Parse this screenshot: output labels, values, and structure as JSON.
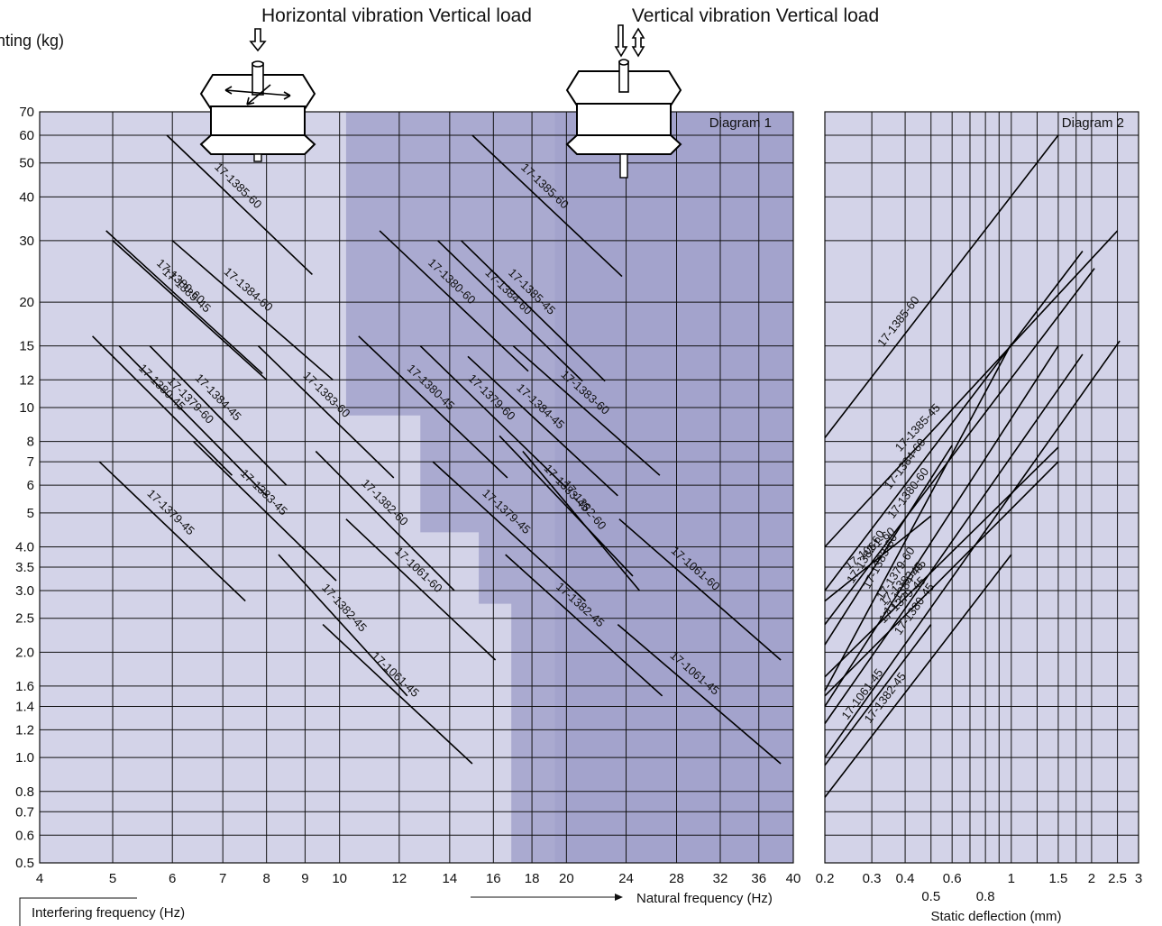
{
  "header": {
    "left_title": "Horizontal vibration Vertical load",
    "right_title": "Vertical vibration Vertical load",
    "y_label": "nting (kg)"
  },
  "chart_data": [
    {
      "type": "line",
      "title": "Diagram 1",
      "x_scale": "log",
      "y_scale": "log",
      "xlim": [
        4,
        40
      ],
      "ylim": [
        0.5,
        70
      ],
      "x_ticks": [
        4,
        5,
        6,
        7,
        8,
        9,
        10,
        12,
        14,
        16,
        18,
        20,
        24,
        28,
        32,
        36,
        40
      ],
      "y_ticks": [
        0.5,
        0.6,
        0.7,
        0.8,
        1.0,
        1.2,
        1.4,
        1.6,
        2.0,
        2.5,
        3.0,
        3.5,
        4.0,
        5,
        6,
        7,
        8,
        10,
        12,
        15,
        20,
        30,
        40,
        50,
        60,
        70
      ],
      "x_tick_labels": [
        "4",
        "5",
        "6",
        "7",
        "8",
        "9",
        "10",
        "12",
        "14",
        "16",
        "18",
        "20",
        "24",
        "28",
        "32",
        "36",
        "40"
      ],
      "y_tick_labels": [
        "0.5",
        "0.6",
        "0.7",
        "0.8",
        "1.0",
        "1.2",
        "1.4",
        "1.6",
        "2.0",
        "2.5",
        "3.0",
        "3.5",
        "4.0",
        "5",
        "6",
        "7",
        "8",
        "10",
        "12",
        "15",
        "20",
        "30",
        "40",
        "50",
        "60",
        "70"
      ],
      "xlabel_left": "Interfering frequency (Hz)",
      "xlabel_right": "Natural frequency (Hz)",
      "grid": true,
      "region_light_color": "#d3d3e8",
      "region_mid_color": "#aaaad0",
      "region_dark_color": "#a3a3cc",
      "series": [
        {
          "name": "17-1385-60",
          "x": [
            5.9,
            9.2
          ],
          "y": [
            60,
            24
          ]
        },
        {
          "name": "17-1385-45",
          "x": [
            5.0,
            8.0
          ],
          "y": [
            30,
            12
          ]
        },
        {
          "name": "17-1384-60",
          "x": [
            6.0,
            9.8
          ],
          "y": [
            30,
            12
          ]
        },
        {
          "name": "17-1380-60",
          "x": [
            4.9,
            7.9
          ],
          "y": [
            32,
            12.5
          ]
        },
        {
          "name": "17-1383-60",
          "x": [
            7.8,
            11.8
          ],
          "y": [
            15,
            6.3
          ]
        },
        {
          "name": "17-1384-45",
          "x": [
            5.6,
            8.5
          ],
          "y": [
            15,
            6
          ]
        },
        {
          "name": "17-1379-60",
          "x": [
            5.1,
            8.0
          ],
          "y": [
            15,
            5.6
          ]
        },
        {
          "name": "17-1380-45",
          "x": [
            4.7,
            7.2
          ],
          "y": [
            16,
            6.4
          ]
        },
        {
          "name": "17-1379-45",
          "x": [
            4.8,
            7.5
          ],
          "y": [
            7,
            2.8
          ]
        },
        {
          "name": "17-1383-45",
          "x": [
            6.4,
            9.9
          ],
          "y": [
            8,
            3.2
          ]
        },
        {
          "name": "17-1382-60",
          "x": [
            9.3,
            14.2
          ],
          "y": [
            7.5,
            3.0
          ]
        },
        {
          "name": "17-1061-60",
          "x": [
            10.2,
            16.1
          ],
          "y": [
            4.8,
            1.9
          ]
        },
        {
          "name": "17-1382-45",
          "x": [
            8.3,
            12.3
          ],
          "y": [
            3.8,
            1.5
          ]
        },
        {
          "name": "17-1061-45",
          "x": [
            9.5,
            15.0
          ],
          "y": [
            2.4,
            0.96
          ]
        },
        {
          "name": "17-1385-60",
          "x": [
            15.0,
            23.7
          ],
          "y": [
            60,
            23.7
          ]
        },
        {
          "name": "17-1384-60",
          "x": [
            13.5,
            21.0
          ],
          "y": [
            30,
            11.9
          ]
        },
        {
          "name": "17-1385-45",
          "x": [
            14.5,
            22.5
          ],
          "y": [
            30,
            11.9
          ]
        },
        {
          "name": "17-1380-60",
          "x": [
            11.3,
            17.8
          ],
          "y": [
            32,
            12.7
          ]
        },
        {
          "name": "17-1383-60",
          "x": [
            17.0,
            26.6
          ],
          "y": [
            15,
            6.4
          ]
        },
        {
          "name": "17-1384-45",
          "x": [
            14.8,
            23.4
          ],
          "y": [
            14,
            5.6
          ]
        },
        {
          "name": "17-1379-60",
          "x": [
            12.8,
            20.0
          ],
          "y": [
            15,
            5.9
          ]
        },
        {
          "name": "17-1380-45",
          "x": [
            10.6,
            16.7
          ],
          "y": [
            16,
            6.3
          ]
        },
        {
          "name": "17-1382-60",
          "x": [
            17.5,
            25.0
          ],
          "y": [
            7.5,
            3.0
          ]
        },
        {
          "name": "17-1383-45",
          "x": [
            16.3,
            24.5
          ],
          "y": [
            8.3,
            3.3
          ]
        },
        {
          "name": "17-1379-45",
          "x": [
            13.3,
            21.2
          ],
          "y": [
            7,
            2.8
          ]
        },
        {
          "name": "17-1061-60",
          "x": [
            23.5,
            38.5
          ],
          "y": [
            4.8,
            1.9
          ]
        },
        {
          "name": "17-1382-45",
          "x": [
            16.6,
            26.8
          ],
          "y": [
            3.8,
            1.5
          ]
        },
        {
          "name": "17-1061-45",
          "x": [
            23.4,
            38.5
          ],
          "y": [
            2.4,
            0.96
          ]
        }
      ]
    },
    {
      "type": "line",
      "title": "Diagram 2",
      "x_scale": "log",
      "y_scale": "log",
      "xlim": [
        0.2,
        3.0
      ],
      "ylim": [
        0.5,
        70
      ],
      "x_ticks": [
        0.2,
        0.3,
        0.4,
        0.5,
        0.6,
        0.8,
        1,
        1.5,
        2,
        2.5,
        3
      ],
      "x_tick_labels_top": [
        "0.2",
        "0.3",
        "0.4",
        "0.6",
        "1",
        "1.5",
        "2",
        "2.5",
        "3"
      ],
      "x_tick_labels_bottom": [
        "0.5",
        "0.8"
      ],
      "xlabel": "Static deflection (mm)",
      "grid": true,
      "series": [
        {
          "name": "17-1385-60",
          "x": [
            0.2,
            1.5
          ],
          "y": [
            8.2,
            60
          ]
        },
        {
          "name": "17-1385-45",
          "x": [
            0.2,
            2.5
          ],
          "y": [
            4.0,
            32
          ]
        },
        {
          "name": "17-1384-60",
          "x": [
            0.2,
            1.85
          ],
          "y": [
            3.0,
            28
          ]
        },
        {
          "name": "17-1380-60",
          "x": [
            0.2,
            2.05
          ],
          "y": [
            2.4,
            25
          ]
        },
        {
          "name": "17-1383-60",
          "x": [
            0.2,
            1.0
          ],
          "y": [
            1.55,
            15.2
          ]
        },
        {
          "name": "17-1379-60",
          "x": [
            0.2,
            1.5
          ],
          "y": [
            1.4,
            15
          ]
        },
        {
          "name": "17-1384-45",
          "x": [
            0.2,
            1.85
          ],
          "y": [
            1.25,
            14.2
          ]
        },
        {
          "name": "17-1380-45",
          "x": [
            0.2,
            2.55
          ],
          "y": [
            1.0,
            15.5
          ]
        },
        {
          "name": "17-1061-60",
          "x": [
            0.2,
            0.5
          ],
          "y": [
            2.8,
            4.9
          ]
        },
        {
          "name": "17-1382-60",
          "x": [
            0.2,
            0.6
          ],
          "y": [
            2.1,
            7.8
          ]
        },
        {
          "name": "17-1383-45",
          "x": [
            0.2,
            1.5
          ],
          "y": [
            1.7,
            7.7
          ]
        },
        {
          "name": "17-1379-45",
          "x": [
            0.2,
            1.5
          ],
          "y": [
            1.5,
            7.0
          ]
        },
        {
          "name": "17-1061-45",
          "x": [
            0.2,
            0.5
          ],
          "y": [
            0.95,
            2.4
          ]
        },
        {
          "name": "17-1382-45",
          "x": [
            0.2,
            1.0
          ],
          "y": [
            0.77,
            3.8
          ]
        }
      ]
    }
  ]
}
